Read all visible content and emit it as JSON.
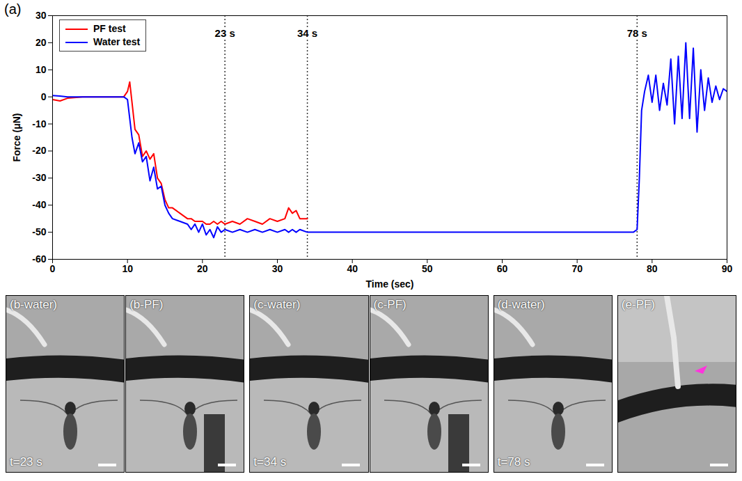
{
  "chart_data": {
    "type": "line",
    "panel_label": "(a)",
    "x_label": "Time (sec)",
    "y_label": "Force (μN)",
    "xlim": [
      0,
      90
    ],
    "xticks": [
      0,
      10,
      20,
      30,
      40,
      50,
      60,
      70,
      80,
      90
    ],
    "ylim": [
      -60,
      30
    ],
    "yticks": [
      -60,
      -50,
      -40,
      -30,
      -20,
      -10,
      0,
      10,
      20,
      30
    ],
    "grid": false,
    "legend": "top-left",
    "x": [
      0,
      1,
      2,
      4,
      6,
      8,
      9.5,
      10,
      10.3,
      10.6,
      11,
      11.5,
      12,
      12.5,
      13,
      13.5,
      14,
      14.5,
      15,
      15.5,
      16,
      17,
      18,
      18.5,
      19,
      19.5,
      20,
      20.5,
      21,
      21.5,
      22,
      22.5,
      23,
      24,
      25,
      26,
      27,
      28,
      29,
      30,
      31,
      31.5,
      32,
      32.5,
      33,
      34,
      36,
      40,
      50,
      60,
      70,
      77.5,
      78,
      78.3,
      78.6,
      79,
      79.5,
      80,
      80.5,
      81,
      81.5,
      82,
      82.5,
      83,
      83.5,
      84,
      84.5,
      85,
      85.5,
      86,
      86.5,
      87,
      87.5,
      88,
      88.5,
      89,
      89.5,
      90
    ],
    "series": [
      {
        "name": "PF test",
        "color": "#ff0000",
        "values": [
          -1,
          -1.5,
          -0.5,
          0,
          0,
          0,
          0,
          2,
          5.5,
          -2,
          -12,
          -14,
          -22,
          -20,
          -23,
          -21,
          -30,
          -32,
          -38,
          -41,
          -41,
          -43,
          -45,
          -45,
          -46,
          -46,
          -46,
          -47,
          -47,
          -46,
          -47,
          -46,
          -47,
          -46,
          -47,
          -45,
          -46,
          -47,
          -45,
          -46,
          -45,
          -41,
          -43,
          -42,
          -45,
          -45,
          null,
          null,
          null,
          null,
          null,
          null,
          null,
          null,
          null,
          null,
          null,
          null,
          null,
          null,
          null,
          null,
          null,
          null,
          null,
          null,
          null,
          null,
          null,
          null,
          null,
          null,
          null,
          null,
          null,
          null,
          null,
          null
        ]
      },
      {
        "name": "Water test",
        "color": "#0000ff",
        "values": [
          0.5,
          0.3,
          0,
          0,
          0,
          0,
          0,
          -1,
          -8,
          -15,
          -21,
          -17,
          -24,
          -22,
          -31,
          -26,
          -34,
          -33,
          -40,
          -43,
          -45,
          -46,
          -47,
          -49,
          -47,
          -50,
          -47,
          -51,
          -49,
          -52,
          -48,
          -50,
          -49,
          -50,
          -49,
          -50,
          -49,
          -50,
          -49,
          -50,
          -49,
          -50,
          -49,
          -50,
          -49,
          -50,
          -50,
          -50,
          -50,
          -50,
          -50,
          -50,
          -49,
          -30,
          -5,
          2,
          8,
          -2,
          8,
          -5,
          5,
          -3,
          14,
          -10,
          15,
          -8,
          20,
          -8,
          18,
          -13,
          10,
          -5,
          7,
          -2,
          4,
          -1,
          3,
          2
        ]
      }
    ],
    "annotations": [
      {
        "x": 23,
        "text": "23 s"
      },
      {
        "x": 34,
        "text": "34 s"
      },
      {
        "x": 78,
        "text": "78 s"
      }
    ]
  },
  "panels": [
    {
      "label": "(b-water)",
      "time": "t=23 s"
    },
    {
      "label": "(b-PF)"
    },
    {
      "label": "(c-water)",
      "time": "t=34 s"
    },
    {
      "label": "(c-PF)"
    },
    {
      "label": "(d-water)",
      "time": "t=78 s"
    },
    {
      "label": "(e-PF)"
    }
  ]
}
